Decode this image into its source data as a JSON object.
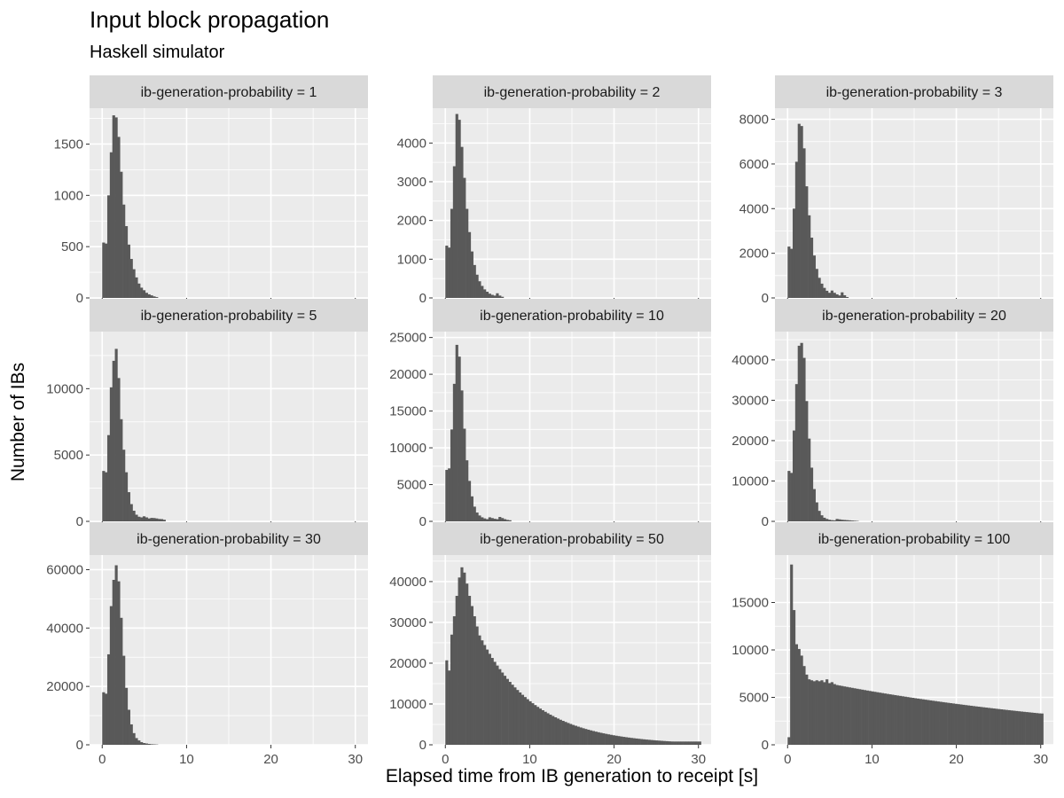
{
  "title": "Input block propagation",
  "subtitle": "Haskell simulator",
  "colors": {
    "panel_bg": "#ebebeb",
    "strip_bg": "#d9d9d9",
    "grid": "#ffffff",
    "bar": "#595959",
    "tick": "#333333"
  },
  "chart_data": {
    "type": "bar",
    "title": "Input block propagation",
    "subtitle": "Haskell simulator",
    "xlabel": "Elapsed time from IB generation to receipt [s]",
    "ylabel": "Number of IBs",
    "xlim": [
      -1.5,
      31.5
    ],
    "x_ticks": [
      0,
      10,
      20,
      30
    ],
    "bin_width": 0.3,
    "grid": true,
    "facets": [
      {
        "label": "ib-generation-probability = 1",
        "ylim": [
          0,
          1850
        ],
        "y_ticks": [
          0,
          500,
          1000,
          1500
        ],
        "values": [
          540,
          530,
          1000,
          1420,
          1780,
          1760,
          1570,
          1230,
          910,
          700,
          520,
          380,
          280,
          200,
          140,
          100,
          75,
          50,
          35,
          25,
          15,
          8
        ]
      },
      {
        "label": "ib-generation-probability = 2",
        "ylim": [
          0,
          4900
        ],
        "y_ticks": [
          0,
          1000,
          2000,
          3000,
          4000
        ],
        "values": [
          1350,
          1300,
          2300,
          3400,
          4750,
          4600,
          3900,
          3100,
          2300,
          1700,
          1200,
          850,
          600,
          430,
          310,
          220,
          160,
          110,
          80,
          60,
          120,
          60,
          30
        ]
      },
      {
        "label": "ib-generation-probability = 3",
        "ylim": [
          0,
          8500
        ],
        "y_ticks": [
          0,
          2000,
          4000,
          6000,
          8000
        ],
        "values": [
          2300,
          2200,
          4000,
          6100,
          7800,
          7700,
          6700,
          5000,
          3700,
          2700,
          1900,
          1300,
          900,
          640,
          450,
          320,
          230,
          330,
          230,
          160,
          110,
          250,
          120,
          40
        ]
      },
      {
        "label": "ib-generation-probability = 5",
        "ylim": [
          0,
          14300
        ],
        "y_ticks": [
          0,
          5000,
          10000
        ],
        "values": [
          3800,
          3700,
          6500,
          10100,
          12100,
          13000,
          10800,
          7700,
          5400,
          3700,
          2200,
          1300,
          800,
          500,
          350,
          300,
          380,
          300,
          220,
          260,
          250,
          220,
          180,
          170,
          120
        ]
      },
      {
        "label": "ib-generation-probability = 10",
        "ylim": [
          0,
          25800
        ],
        "y_ticks": [
          0,
          5000,
          10000,
          15000,
          20000,
          25000
        ],
        "values": [
          7000,
          7200,
          12500,
          18700,
          24000,
          22400,
          17800,
          12600,
          8300,
          5500,
          3400,
          2000,
          1200,
          800,
          550,
          400,
          300,
          550,
          450,
          350,
          300,
          600,
          450,
          300,
          200,
          150
        ]
      },
      {
        "label": "ib-generation-probability = 20",
        "ylim": [
          0,
          47000
        ],
        "y_ticks": [
          0,
          10000,
          20000,
          30000,
          40000
        ],
        "values": [
          12500,
          12000,
          22500,
          34000,
          43500,
          44200,
          40500,
          29800,
          20500,
          13300,
          8000,
          4700,
          2600,
          1500,
          900,
          600,
          400,
          300,
          250,
          600,
          500,
          400,
          350,
          300,
          250,
          200,
          150,
          100
        ]
      },
      {
        "label": "ib-generation-probability = 30",
        "ylim": [
          0,
          65000
        ],
        "y_ticks": [
          0,
          20000,
          40000,
          60000
        ],
        "values": [
          18000,
          17500,
          31000,
          47500,
          56500,
          61500,
          56000,
          43500,
          30500,
          19500,
          12000,
          7000,
          4000,
          2300,
          1500,
          900,
          600,
          450,
          300,
          200,
          150,
          100
        ]
      },
      {
        "label": "ib-generation-probability = 50",
        "ylim": [
          0,
          46500
        ],
        "y_ticks": [
          0,
          10000,
          20000,
          30000,
          40000
        ],
        "decay": {
          "peak_bins": [
            20700,
            18200,
            27000,
            31500,
            36500,
            41000,
            43500,
            42200,
            39500,
            36500,
            34000,
            31500,
            29000,
            26800
          ],
          "tail_start": 26800,
          "tail_end": 800,
          "tail_rate": 0.045
        }
      },
      {
        "label": "ib-generation-probability = 100",
        "ylim": [
          0,
          20000
        ],
        "y_ticks": [
          0,
          5000,
          10000,
          15000
        ],
        "decay": {
          "peak_bins": [
            800,
            19000,
            14200,
            10600,
            10100,
            9400,
            8300,
            7400,
            6900,
            6800,
            6700,
            6800,
            6700,
            6800,
            6600,
            6900,
            6500,
            6600,
            6400,
            6300
          ],
          "tail_start": 6300,
          "tail_end": 3300,
          "tail_rate": 0.008
        }
      }
    ]
  }
}
